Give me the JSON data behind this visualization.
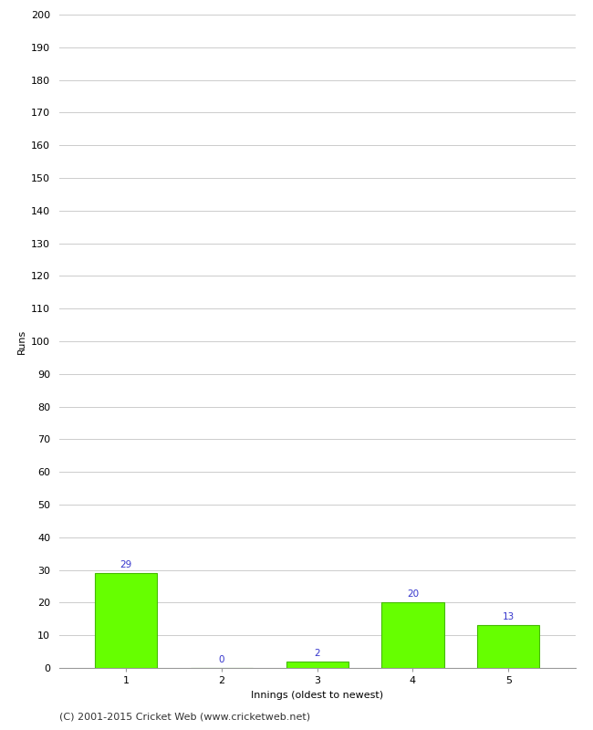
{
  "categories": [
    1,
    2,
    3,
    4,
    5
  ],
  "values": [
    29,
    0,
    2,
    20,
    13
  ],
  "bar_color": "#66ff00",
  "bar_edge_color": "#44bb00",
  "label_color": "#3333cc",
  "xlabel": "Innings (oldest to newest)",
  "ylabel": "Runs",
  "ylim": [
    0,
    200
  ],
  "yticks": [
    0,
    10,
    20,
    30,
    40,
    50,
    60,
    70,
    80,
    90,
    100,
    110,
    120,
    130,
    140,
    150,
    160,
    170,
    180,
    190,
    200
  ],
  "grid_color": "#cccccc",
  "background_color": "#ffffff",
  "footer_text": "(C) 2001-2015 Cricket Web (www.cricketweb.net)",
  "label_fontsize": 7.5,
  "axis_label_fontsize": 8,
  "tick_fontsize": 8,
  "footer_fontsize": 8
}
